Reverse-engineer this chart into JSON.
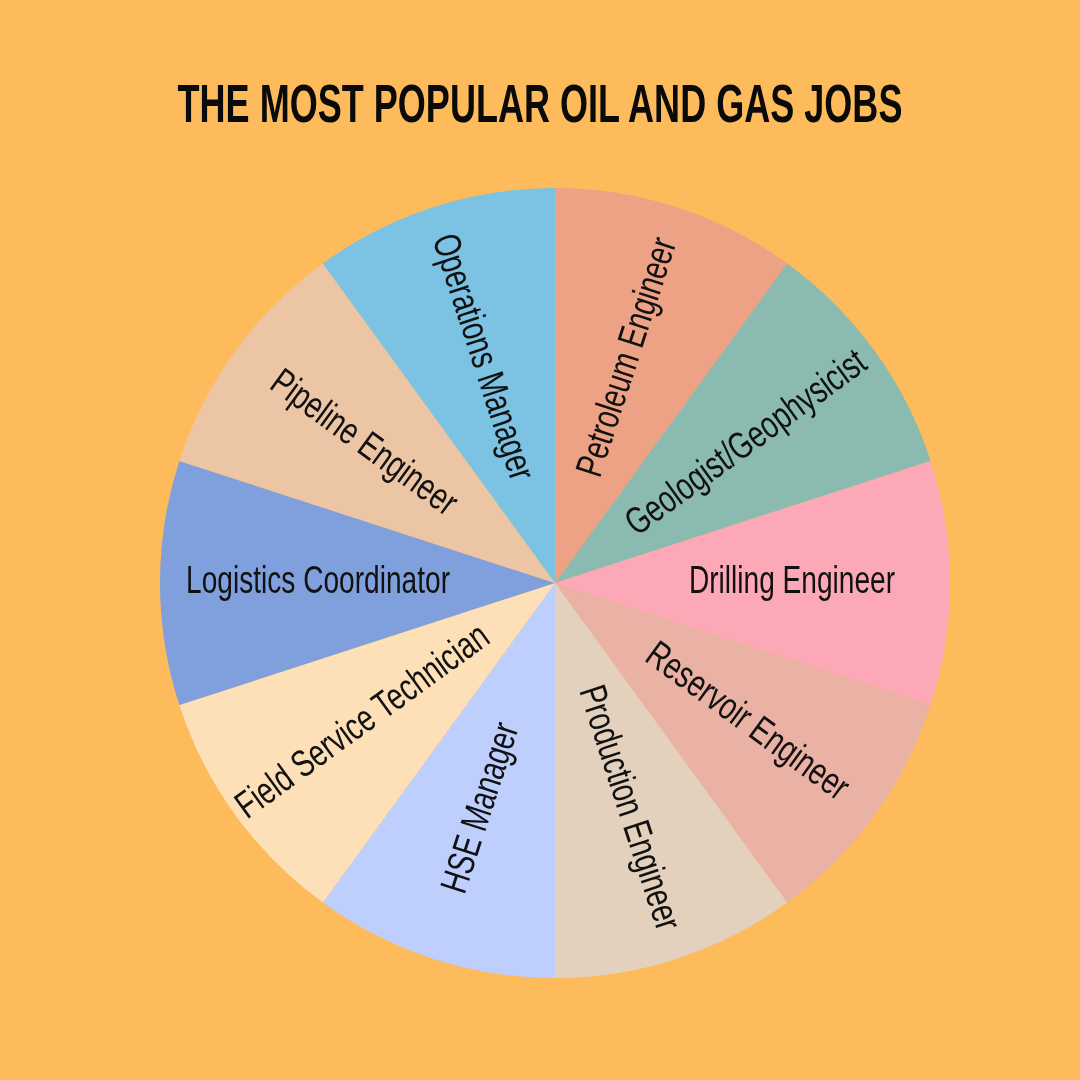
{
  "chart_data": {
    "type": "pie",
    "title": "THE MOST POPULAR OIL AND GAS JOBS",
    "categories": [
      "Petroleum Engineer",
      "Geologist/Geophysicist",
      "Drilling Engineer",
      "Reservoir Engineer",
      "Production Engineer",
      "HSE Manager",
      "Field Service Technician",
      "Logistics Coordinator",
      "Pipeline Engineer",
      "Operations Manager"
    ],
    "values": [
      10,
      10,
      10,
      10,
      10,
      10,
      10,
      10,
      10,
      10
    ],
    "colors": [
      "#eda285",
      "#8bbbb0",
      "#fda8b7",
      "#eab1a5",
      "#e3d1bd",
      "#bfcffd",
      "#fde0b8",
      "#7fa0dc",
      "#ecc5a5",
      "#7cc2e2"
    ]
  }
}
